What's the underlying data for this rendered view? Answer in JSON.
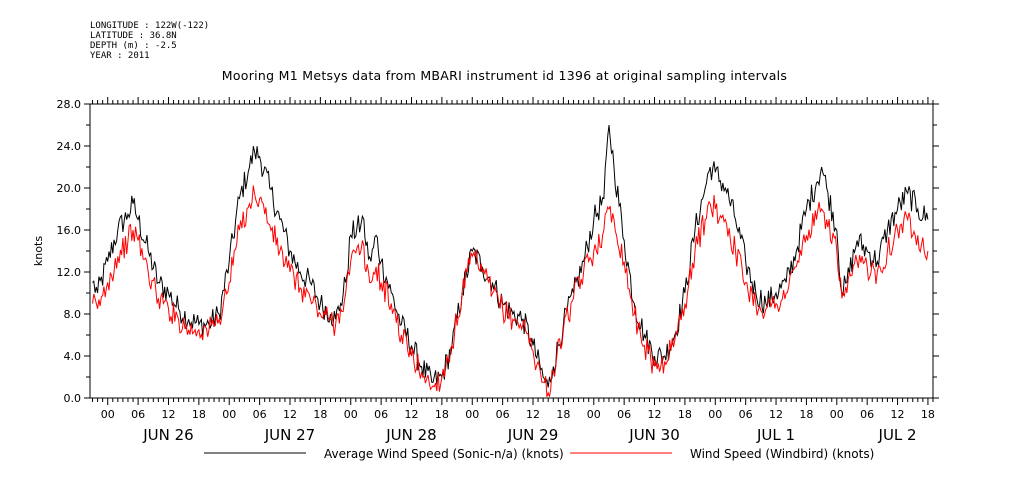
{
  "header": {
    "longitude": "LONGITUDE : 122W(-122)",
    "latitude": "LATITUDE : 36.8N",
    "depth": "DEPTH (m) : -2.5",
    "year": "YEAR : 2011"
  },
  "chart_data": {
    "type": "line",
    "title": "Mooring M1 Metsys data from MBARI instrument id 1396 at original sampling intervals",
    "ylabel": "knots",
    "ylim": [
      0,
      28
    ],
    "y_ticks": [
      "0.0",
      "4.0",
      "8.0",
      "12.0",
      "16.0",
      "20.0",
      "24.0",
      "28.0"
    ],
    "x_unit": "hours since JUN 26 00:00",
    "xlim": [
      -3.5,
      163
    ],
    "x_hour_ticks": [
      "00",
      "06",
      "12",
      "18"
    ],
    "x_day_labels": [
      "JUN 26",
      "JUN 27",
      "JUN 28",
      "JUN 29",
      "JUN 30",
      "JUL  1",
      "JUL  2"
    ],
    "grid": false,
    "legend_position": "bottom",
    "series": [
      {
        "name": "Average Wind Speed (Sonic-n/a) (knots)",
        "color": "#000000",
        "points": [
          [
            -3,
            11
          ],
          [
            -2,
            10
          ],
          [
            0,
            13
          ],
          [
            2,
            16
          ],
          [
            4,
            17.5
          ],
          [
            5,
            18.5
          ],
          [
            6,
            17
          ],
          [
            8,
            14
          ],
          [
            10,
            11
          ],
          [
            12,
            10
          ],
          [
            14,
            8.5
          ],
          [
            16,
            7.5
          ],
          [
            18,
            7
          ],
          [
            20,
            7
          ],
          [
            22,
            8
          ],
          [
            24,
            13
          ],
          [
            26,
            19
          ],
          [
            28,
            22
          ],
          [
            29,
            23.5
          ],
          [
            30,
            23
          ],
          [
            32,
            20
          ],
          [
            34,
            17
          ],
          [
            36,
            14
          ],
          [
            38,
            12
          ],
          [
            40,
            11
          ],
          [
            42,
            9
          ],
          [
            44,
            8
          ],
          [
            45,
            7.5
          ],
          [
            46,
            9
          ],
          [
            47,
            11
          ],
          [
            48,
            15.5
          ],
          [
            50,
            16.5
          ],
          [
            50.6,
            17
          ],
          [
            51,
            14.5
          ],
          [
            52,
            13
          ],
          [
            53,
            15.5
          ],
          [
            54,
            13
          ],
          [
            56,
            10
          ],
          [
            58,
            7
          ],
          [
            60,
            5
          ],
          [
            62,
            3
          ],
          [
            64,
            1.5
          ],
          [
            66,
            2
          ],
          [
            68,
            5
          ],
          [
            70,
            10
          ],
          [
            72,
            14
          ],
          [
            74,
            12.5
          ],
          [
            76,
            11
          ],
          [
            78,
            9
          ],
          [
            80,
            8
          ],
          [
            82,
            7.5
          ],
          [
            84,
            5
          ],
          [
            86,
            2
          ],
          [
            87,
            1
          ],
          [
            88,
            3
          ],
          [
            90,
            7
          ],
          [
            92,
            10
          ],
          [
            94,
            13
          ],
          [
            96,
            17
          ],
          [
            98,
            19
          ],
          [
            99,
            26
          ],
          [
            100,
            22
          ],
          [
            102,
            15
          ],
          [
            104,
            9
          ],
          [
            106,
            6
          ],
          [
            108,
            4
          ],
          [
            110,
            4
          ],
          [
            112,
            6
          ],
          [
            114,
            10
          ],
          [
            116,
            16
          ],
          [
            118,
            20
          ],
          [
            119,
            22
          ],
          [
            120,
            21.5
          ],
          [
            122,
            20
          ],
          [
            124,
            17
          ],
          [
            126,
            13
          ],
          [
            128,
            10
          ],
          [
            130,
            9
          ],
          [
            132,
            10
          ],
          [
            134,
            11
          ],
          [
            136,
            14
          ],
          [
            138,
            18
          ],
          [
            140,
            20.5
          ],
          [
            141,
            22
          ],
          [
            142,
            20
          ],
          [
            144,
            16
          ],
          [
            145,
            10
          ],
          [
            146,
            11
          ],
          [
            148,
            15
          ],
          [
            150,
            14
          ],
          [
            152,
            13
          ],
          [
            154,
            16
          ],
          [
            156,
            18
          ],
          [
            158,
            19.5
          ],
          [
            160,
            18
          ],
          [
            162,
            17
          ]
        ]
      },
      {
        "name": "Wind Speed (Windbird) (knots)",
        "color": "#ff0000",
        "points": [
          [
            -3,
            9
          ],
          [
            -2,
            8.5
          ],
          [
            0,
            11
          ],
          [
            2,
            13.5
          ],
          [
            4,
            15
          ],
          [
            5,
            16
          ],
          [
            6,
            15
          ],
          [
            8,
            12
          ],
          [
            10,
            9.5
          ],
          [
            12,
            8.5
          ],
          [
            14,
            7.5
          ],
          [
            16,
            6.5
          ],
          [
            18,
            6.5
          ],
          [
            20,
            6.5
          ],
          [
            22,
            7.5
          ],
          [
            24,
            11
          ],
          [
            26,
            16
          ],
          [
            28,
            18.5
          ],
          [
            29,
            19.5
          ],
          [
            30,
            19
          ],
          [
            32,
            16.5
          ],
          [
            34,
            14
          ],
          [
            36,
            12
          ],
          [
            38,
            10.5
          ],
          [
            40,
            9.5
          ],
          [
            42,
            8
          ],
          [
            44,
            7.5
          ],
          [
            45,
            7
          ],
          [
            46,
            8.5
          ],
          [
            47,
            10
          ],
          [
            48,
            13
          ],
          [
            50,
            14
          ],
          [
            50.6,
            14.5
          ],
          [
            51,
            12
          ],
          [
            52,
            11
          ],
          [
            53,
            12.5
          ],
          [
            54,
            11
          ],
          [
            56,
            9
          ],
          [
            58,
            6
          ],
          [
            60,
            4
          ],
          [
            62,
            2.5
          ],
          [
            64,
            1
          ],
          [
            66,
            2
          ],
          [
            68,
            5
          ],
          [
            70,
            10
          ],
          [
            72,
            13.5
          ],
          [
            74,
            12
          ],
          [
            76,
            10
          ],
          [
            78,
            8.5
          ],
          [
            80,
            7.5
          ],
          [
            82,
            7
          ],
          [
            84,
            4.5
          ],
          [
            86,
            1.5
          ],
          [
            87,
            0.5
          ],
          [
            88,
            2.5
          ],
          [
            90,
            6.5
          ],
          [
            92,
            9.5
          ],
          [
            94,
            12
          ],
          [
            96,
            14
          ],
          [
            98,
            16
          ],
          [
            99,
            18
          ],
          [
            100,
            17
          ],
          [
            102,
            13
          ],
          [
            104,
            8
          ],
          [
            106,
            5
          ],
          [
            108,
            3
          ],
          [
            110,
            3.5
          ],
          [
            112,
            5.5
          ],
          [
            114,
            9
          ],
          [
            116,
            14
          ],
          [
            118,
            17
          ],
          [
            119,
            18.5
          ],
          [
            120,
            18
          ],
          [
            122,
            17
          ],
          [
            124,
            14
          ],
          [
            126,
            11
          ],
          [
            128,
            9
          ],
          [
            130,
            8.5
          ],
          [
            132,
            9
          ],
          [
            134,
            10
          ],
          [
            136,
            12.5
          ],
          [
            138,
            15.5
          ],
          [
            140,
            17
          ],
          [
            141,
            18
          ],
          [
            142,
            17
          ],
          [
            144,
            14
          ],
          [
            145,
            9.5
          ],
          [
            146,
            10
          ],
          [
            148,
            13
          ],
          [
            150,
            12.5
          ],
          [
            152,
            12
          ],
          [
            154,
            14
          ],
          [
            156,
            16
          ],
          [
            158,
            17
          ],
          [
            160,
            15.5
          ],
          [
            162,
            14
          ]
        ]
      }
    ]
  }
}
